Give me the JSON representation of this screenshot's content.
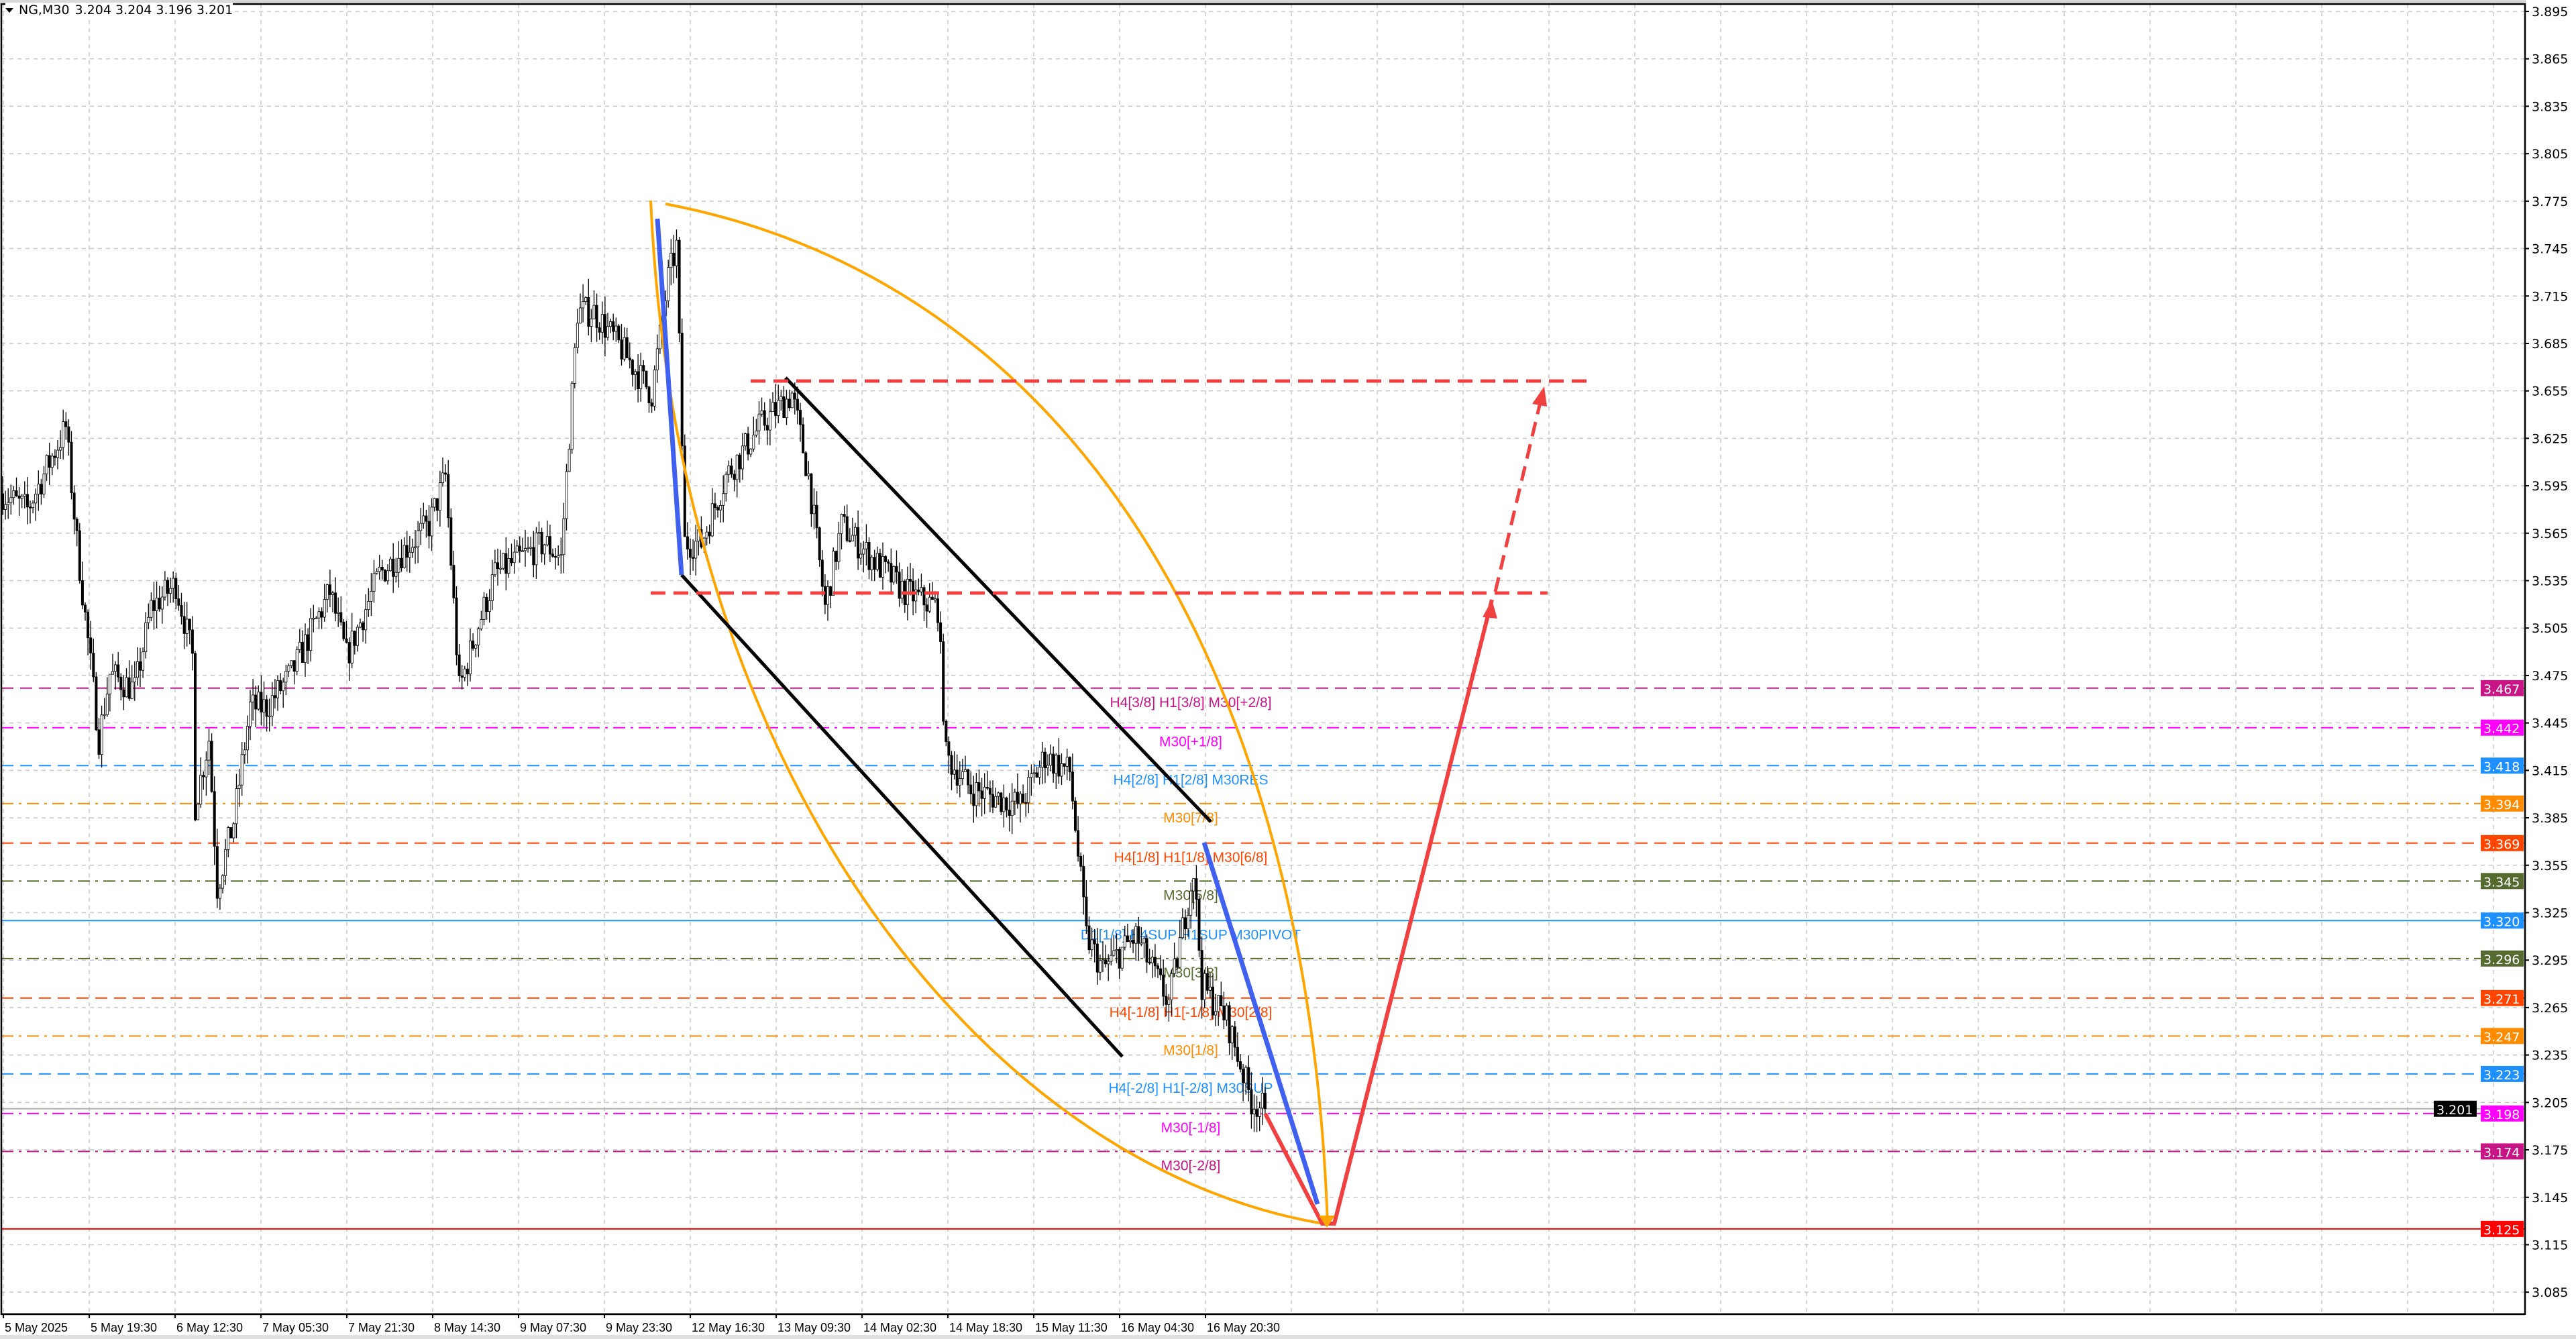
{
  "header": {
    "symbol_timeframe": "NG,M30",
    "ohlc": "3.204 3.204 3.196 3.201"
  },
  "price_axis": {
    "ticks": [
      "3.895",
      "3.865",
      "3.835",
      "3.805",
      "3.775",
      "3.745",
      "3.715",
      "3.685",
      "3.655",
      "3.625",
      "3.595",
      "3.565",
      "3.535",
      "3.505",
      "3.475",
      "3.445",
      "3.415",
      "3.385",
      "3.355",
      "3.325",
      "3.295",
      "3.265",
      "3.235",
      "3.205",
      "3.175",
      "3.145",
      "3.115",
      "3.085"
    ],
    "current_price": "3.201"
  },
  "time_axis": {
    "labels": [
      "5 May 2025",
      "5 May 19:30",
      "6 May 12:30",
      "7 May 05:30",
      "7 May 21:30",
      "8 May 14:30",
      "9 May 07:30",
      "9 May 23:30",
      "12 May 16:30",
      "13 May 09:30",
      "14 May 02:30",
      "14 May 18:30",
      "15 May 11:30",
      "16 May 04:30",
      "16 May 20:30"
    ]
  },
  "levels": [
    {
      "price": "3.467",
      "color": "#c71585",
      "style": "dash",
      "label": "H4[3/8] H1[3/8] M30[+2/8]"
    },
    {
      "price": "3.442",
      "color": "#ff00ff",
      "style": "dashdot",
      "label": "M30[+1/8]"
    },
    {
      "price": "3.418",
      "color": "#1e90ff",
      "style": "dash",
      "label": "H4[2/8] H1[2/8] M30RES"
    },
    {
      "price": "3.394",
      "color": "#ff8c00",
      "style": "dashdot",
      "label": "M30[7/8]"
    },
    {
      "price": "3.369",
      "color": "#ff4500",
      "style": "dash",
      "label": "H4[1/8] H1[1/8] M30[6/8]"
    },
    {
      "price": "3.345",
      "color": "#556b2f",
      "style": "dashdot",
      "label": "M30[5/8]"
    },
    {
      "price": "3.320",
      "color": "#1e90ff",
      "style": "solid",
      "label": "D1[1/8] H4SUP H1SUP M30PIVOT"
    },
    {
      "price": "3.296",
      "color": "#556b2f",
      "style": "dashdot",
      "label": "M30[3/8]"
    },
    {
      "price": "3.271",
      "color": "#ff4500",
      "style": "dash",
      "label": "H4[-1/8] H1[-1/8] M30[2/8]"
    },
    {
      "price": "3.247",
      "color": "#ff8c00",
      "style": "dashdot",
      "label": "M30[1/8]"
    },
    {
      "price": "3.223",
      "color": "#1e90ff",
      "style": "dash",
      "label": "H4[-2/8] H1[-2/8] M30SUP"
    },
    {
      "price": "3.198",
      "color": "#ff00ff",
      "style": "dashdot",
      "label": "M30[-1/8]"
    },
    {
      "price": "3.174",
      "color": "#c71585",
      "style": "dashdot",
      "label": "M30[-2/8]"
    },
    {
      "price": "3.125",
      "color": "#ff0000",
      "style": "solid",
      "label": ""
    }
  ],
  "price_path": [
    [
      0,
      3.59
    ],
    [
      9,
      3.58
    ],
    [
      23,
      3.632
    ],
    [
      27,
      3.559
    ],
    [
      35,
      3.435
    ],
    [
      39,
      3.476
    ],
    [
      48,
      3.466
    ],
    [
      54,
      3.518
    ],
    [
      63,
      3.533
    ],
    [
      69,
      3.487
    ],
    [
      70,
      3.393
    ],
    [
      75,
      3.435
    ],
    [
      78,
      3.341
    ],
    [
      84,
      3.383
    ],
    [
      90,
      3.455
    ],
    [
      96,
      3.455
    ],
    [
      105,
      3.476
    ],
    [
      119,
      3.528
    ],
    [
      125,
      3.487
    ],
    [
      137,
      3.539
    ],
    [
      155,
      3.57
    ],
    [
      161,
      3.601
    ],
    [
      166,
      3.466
    ],
    [
      173,
      3.507
    ],
    [
      179,
      3.539
    ],
    [
      197,
      3.559
    ],
    [
      203,
      3.549
    ],
    [
      209,
      3.705
    ],
    [
      215,
      3.705
    ],
    [
      224,
      3.684
    ],
    [
      236,
      3.653
    ],
    [
      242,
      3.726
    ],
    [
      245,
      3.746
    ],
    [
      248,
      3.559
    ],
    [
      254,
      3.559
    ],
    [
      263,
      3.601
    ],
    [
      275,
      3.632
    ],
    [
      287,
      3.653
    ],
    [
      293,
      3.601
    ],
    [
      299,
      3.518
    ],
    [
      305,
      3.57
    ],
    [
      316,
      3.549
    ],
    [
      328,
      3.528
    ],
    [
      340,
      3.518
    ],
    [
      343,
      3.424
    ],
    [
      352,
      3.403
    ],
    [
      370,
      3.393
    ],
    [
      379,
      3.424
    ],
    [
      388,
      3.414
    ],
    [
      394,
      3.31
    ],
    [
      400,
      3.289
    ],
    [
      412,
      3.31
    ],
    [
      424,
      3.268
    ],
    [
      433,
      3.352
    ],
    [
      436,
      3.279
    ],
    [
      445,
      3.258
    ],
    [
      454,
      3.206
    ],
    [
      459,
      3.201
    ]
  ],
  "colors": {
    "up_body": "#ffffff",
    "down_body": "#000000",
    "arc": "#ffa500",
    "trend_blue": "#4060f0",
    "channel": "#000000",
    "forecast": "#f04040",
    "grid": "#c8c8c8"
  }
}
